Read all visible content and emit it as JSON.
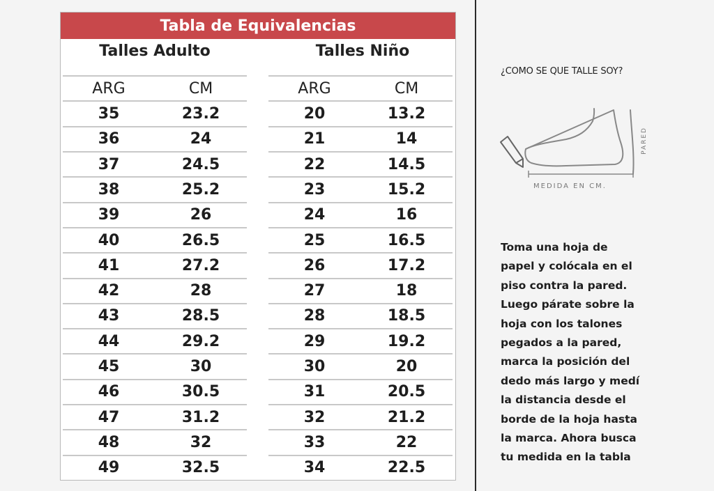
{
  "table": {
    "title": "Tabla de Equivalencias",
    "adult": {
      "header": "Talles Adulto",
      "col_labels": [
        "ARG",
        "CM"
      ],
      "rows": [
        [
          "35",
          "23.2"
        ],
        [
          "36",
          "24"
        ],
        [
          "37",
          "24.5"
        ],
        [
          "38",
          "25.2"
        ],
        [
          "39",
          "26"
        ],
        [
          "40",
          "26.5"
        ],
        [
          "41",
          "27.2"
        ],
        [
          "42",
          "28"
        ],
        [
          "43",
          "28.5"
        ],
        [
          "44",
          "29.2"
        ],
        [
          "45",
          "30"
        ],
        [
          "46",
          "30.5"
        ],
        [
          "47",
          "31.2"
        ],
        [
          "48",
          "32"
        ],
        [
          "49",
          "32.5"
        ]
      ]
    },
    "child": {
      "header": "Talles Niño",
      "col_labels": [
        "ARG",
        "CM"
      ],
      "rows": [
        [
          "20",
          "13.2"
        ],
        [
          "21",
          "14"
        ],
        [
          "22",
          "14.5"
        ],
        [
          "23",
          "15.2"
        ],
        [
          "24",
          "16"
        ],
        [
          "25",
          "16.5"
        ],
        [
          "26",
          "17.2"
        ],
        [
          "27",
          "18"
        ],
        [
          "28",
          "18.5"
        ],
        [
          "29",
          "19.2"
        ],
        [
          "30",
          "20"
        ],
        [
          "31",
          "20.5"
        ],
        [
          "32",
          "21.2"
        ],
        [
          "33",
          "22"
        ],
        [
          "34",
          "22.5"
        ]
      ]
    }
  },
  "guide": {
    "question": "¿COMO SE QUE TALLE SOY?",
    "diagram": {
      "wall_label": "PARED",
      "measure_label": "MEDIDA EN CM.",
      "icons": [
        "foot-icon",
        "pencil-icon"
      ]
    },
    "instructions": [
      "Toma una hoja de",
      "papel y colócala en el",
      "piso contra la pared.",
      "Luego párate sobre la",
      "hoja con los talones",
      "pegados a la pared,",
      "marca la posición del",
      "dedo más largo y medí",
      "la distancia desde el",
      "borde de la hoja hasta",
      "la marca. Ahora busca",
      "tu medida en la tabla"
    ]
  },
  "colors": {
    "title_bg": "#c8484b",
    "row_line": "#c8c8c8",
    "background": "#f4f4f4"
  }
}
